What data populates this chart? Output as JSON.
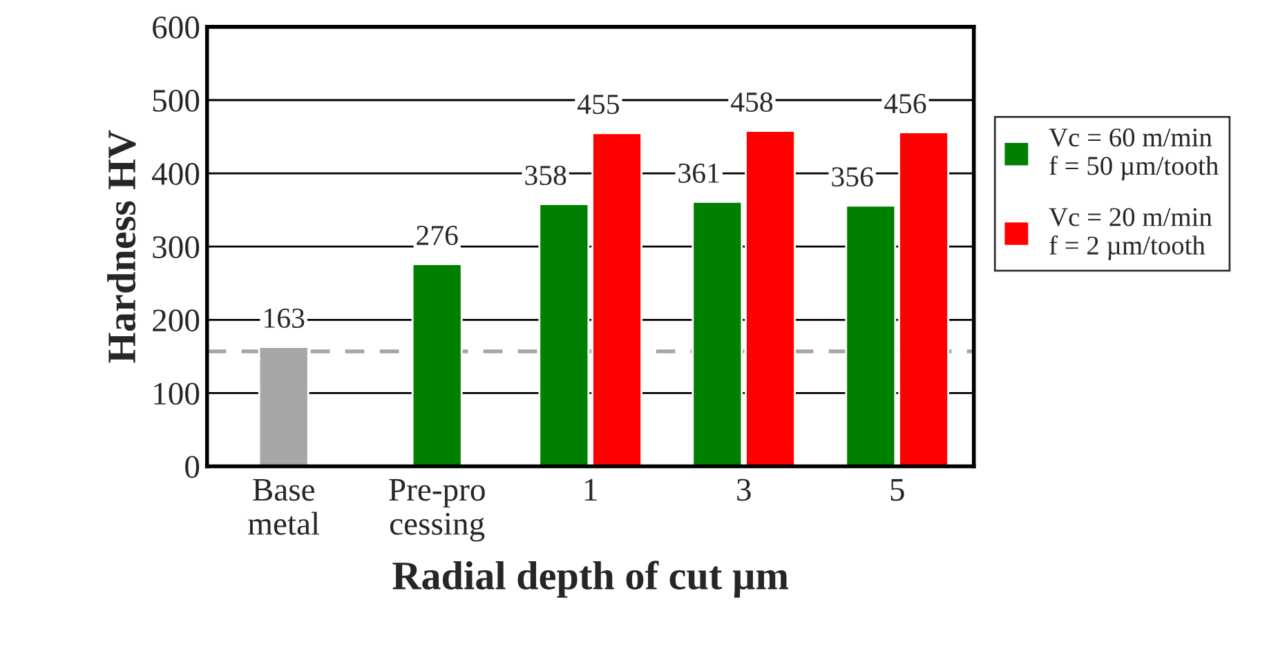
{
  "chart_data": {
    "type": "bar",
    "xlabel": "Radial depth of cut µm",
    "ylabel": "Hardness HV",
    "categories": [
      "Base\nmetal",
      "Pre-pro\ncessing",
      "1",
      "3",
      "5"
    ],
    "series": [
      {
        "color": "#a6a6a6",
        "values": [
          163,
          null,
          null,
          null,
          null
        ]
      },
      {
        "name": "Vc = 60 m/min\nf = 50 µm/tooth",
        "color": "#008000",
        "values": [
          null,
          276,
          358,
          361,
          356
        ]
      },
      {
        "name": "Vc = 20 m/min\nf = 2 µm/tooth",
        "color": "#ff0000",
        "values": [
          null,
          null,
          455,
          458,
          456
        ]
      }
    ],
    "ylim": [
      0,
      600
    ],
    "yticks": [
      0,
      100,
      200,
      300,
      400,
      500,
      600
    ],
    "grid": "y",
    "legend": "right",
    "data_labels": true,
    "ref_lines": [
      {
        "axis": "y",
        "value": 157,
        "color": "#a6a6a6",
        "line_style": "dashed"
      }
    ]
  }
}
